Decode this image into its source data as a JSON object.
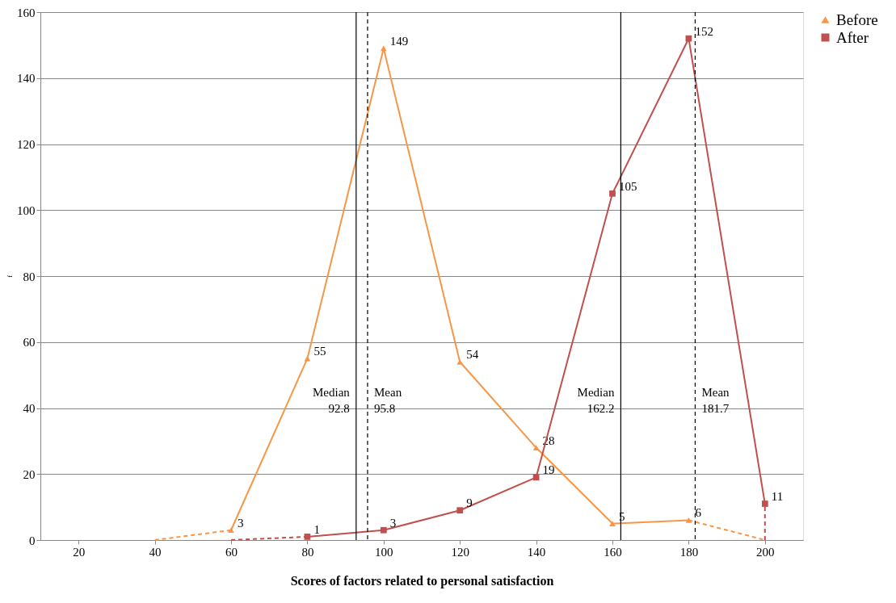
{
  "chart_data": {
    "type": "line",
    "xlabel": "Scores of factors related to personal satisfaction",
    "ylabel": "f",
    "xlim": [
      10,
      210
    ],
    "xticks": [
      20,
      40,
      60,
      80,
      100,
      120,
      140,
      160,
      180,
      200
    ],
    "ylim": [
      0,
      160
    ],
    "yticks": [
      0,
      20,
      40,
      60,
      80,
      100,
      120,
      140,
      160
    ],
    "grid": "y",
    "legend": "right",
    "series": [
      {
        "name": "Before",
        "color": "#f79646",
        "marker": "triangle",
        "line_style": "solid",
        "x": [
          60,
          80,
          100,
          120,
          140,
          160,
          180
        ],
        "values": [
          3,
          55,
          149,
          54,
          28,
          5,
          6
        ],
        "value_labels": [
          "3",
          "55",
          "149",
          "54",
          "28",
          "5",
          "6"
        ]
      },
      {
        "name": "After",
        "color": "#c0504d",
        "marker": "square",
        "line_style": "solid",
        "x": [
          80,
          100,
          120,
          140,
          160,
          180,
          200
        ],
        "values": [
          1,
          3,
          9,
          19,
          105,
          152,
          11
        ],
        "value_labels": [
          "1",
          "3",
          "9",
          "19",
          "105",
          "152",
          "11"
        ]
      },
      {
        "color": "#f79646",
        "marker": "none",
        "line_style": "dashed",
        "x": [
          40,
          60
        ],
        "values": [
          0,
          3
        ]
      },
      {
        "color": "#f79646",
        "marker": "none",
        "line_style": "dashed",
        "x": [
          180,
          200
        ],
        "values": [
          6,
          0
        ]
      },
      {
        "color": "#c0504d",
        "marker": "none",
        "line_style": "dashed",
        "x": [
          60,
          80
        ],
        "values": [
          0,
          1
        ]
      },
      {
        "color": "#c0504d",
        "marker": "none",
        "line_style": "dashed",
        "x": [
          200,
          200
        ],
        "values": [
          0,
          11
        ]
      }
    ],
    "ref_lines": [
      {
        "axis": "x",
        "value": 92.8,
        "label": "Median 92.8",
        "color": "#000000",
        "line_style": "solid"
      },
      {
        "axis": "x",
        "value": 95.8,
        "label": "Mean 95.8",
        "color": "#000000",
        "line_style": "dashed"
      },
      {
        "axis": "x",
        "value": 162.2,
        "label": "Median 162.2",
        "color": "#000000",
        "line_style": "solid"
      },
      {
        "axis": "x",
        "value": 181.7,
        "label": "Mean 181.7",
        "color": "#000000",
        "line_style": "dashed"
      }
    ]
  }
}
